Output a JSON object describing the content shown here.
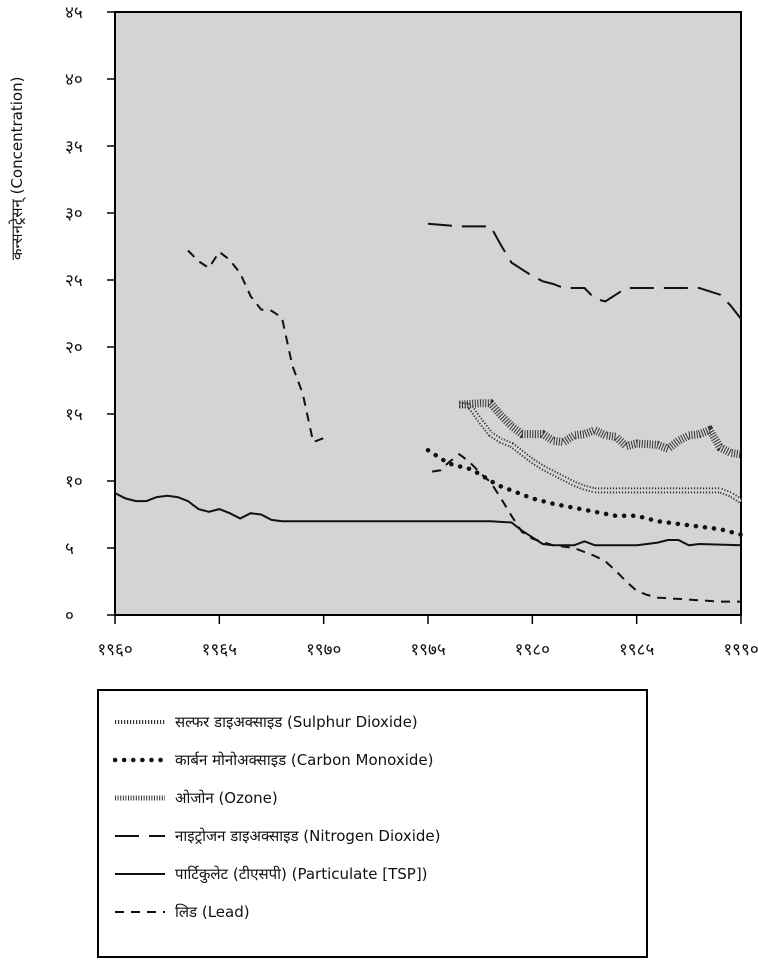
{
  "chart_data": {
    "type": "line",
    "title": "",
    "xlabel": "",
    "ylabel": "कन्सनट्रेसन् (Concentration)",
    "xlim": [
      1960,
      1990
    ],
    "ylim": [
      0,
      45
    ],
    "x_ticks": [
      "१९६०",
      "१९६५",
      "१९७०",
      "१९७५",
      "१९८०",
      "१९८५",
      "१९९०"
    ],
    "y_ticks": [
      "०",
      "५",
      "१०",
      "१५",
      "२०",
      "२५",
      "३०",
      "३५",
      "४०",
      "४५"
    ],
    "grid": false,
    "legend_position": "bottom",
    "series": [
      {
        "name": "सल्फर डाइअक्साइड (Sulphur Dioxide)",
        "style": "zigzag",
        "color": "#222222",
        "points": [
          [
            1976.5,
            15.7
          ],
          [
            1977,
            15.6
          ],
          [
            1977.5,
            14.5
          ],
          [
            1978,
            13.5
          ],
          [
            1978.5,
            13
          ],
          [
            1979,
            12.7
          ],
          [
            1979.5,
            12.1
          ],
          [
            1980,
            11.5
          ],
          [
            1980.5,
            11
          ],
          [
            1981,
            10.6
          ],
          [
            1981.5,
            10.2
          ],
          [
            1982,
            9.8
          ],
          [
            1982.5,
            9.5
          ],
          [
            1983,
            9.3
          ],
          [
            1984,
            9.3
          ],
          [
            1985,
            9.3
          ],
          [
            1986,
            9.3
          ],
          [
            1987,
            9.3
          ],
          [
            1988,
            9.3
          ],
          [
            1989,
            9.3
          ],
          [
            1989.5,
            9
          ],
          [
            1990,
            8.5
          ]
        ]
      },
      {
        "name": "कार्बन मोनोअक्साइड (Carbon Monoxide)",
        "style": "dotted",
        "color": "#111111",
        "points": [
          [
            1975,
            12.3
          ],
          [
            1975.5,
            11.8
          ],
          [
            1976,
            11.3
          ],
          [
            1976.5,
            11.1
          ],
          [
            1977,
            10.9
          ],
          [
            1977.5,
            10.5
          ],
          [
            1978,
            10
          ],
          [
            1978.5,
            9.6
          ],
          [
            1979,
            9.3
          ],
          [
            1979.5,
            9
          ],
          [
            1980,
            8.7
          ],
          [
            1981,
            8.3
          ],
          [
            1982,
            8
          ],
          [
            1983,
            7.7
          ],
          [
            1984,
            7.4
          ],
          [
            1985,
            7.4
          ],
          [
            1986,
            7
          ],
          [
            1987,
            6.8
          ],
          [
            1988,
            6.6
          ],
          [
            1989,
            6.4
          ],
          [
            1990,
            6
          ]
        ]
      },
      {
        "name": "ओजोन (Ozone)",
        "style": "hatched",
        "color": "#222222",
        "points": [
          [
            1976.5,
            15.7
          ],
          [
            1977.5,
            15.8
          ],
          [
            1978,
            15.8
          ],
          [
            1978.5,
            14.9
          ],
          [
            1979,
            14.1
          ],
          [
            1979.5,
            13.5
          ],
          [
            1980,
            13.5
          ],
          [
            1980.5,
            13.5
          ],
          [
            1981,
            13
          ],
          [
            1981.5,
            12.9
          ],
          [
            1982,
            13.4
          ],
          [
            1982.5,
            13.5
          ],
          [
            1983,
            13.8
          ],
          [
            1983.5,
            13.4
          ],
          [
            1984,
            13.3
          ],
          [
            1984.5,
            12.6
          ],
          [
            1985,
            12.8
          ],
          [
            1986,
            12.7
          ],
          [
            1986.5,
            12.4
          ],
          [
            1987,
            13
          ],
          [
            1987.5,
            13.4
          ],
          [
            1988,
            13.5
          ],
          [
            1988.5,
            13.8
          ],
          [
            1989,
            12.5
          ],
          [
            1989.5,
            12.1
          ],
          [
            1990,
            12
          ]
        ]
      },
      {
        "name": "नाइट्रोजन डाइअक्साइड (Nitrogen Dioxide)",
        "style": "longdash",
        "color": "#111111",
        "points": [
          [
            1975,
            29.2
          ],
          [
            1976.5,
            29
          ],
          [
            1978,
            29
          ],
          [
            1978.5,
            27.6
          ],
          [
            1979,
            26.3
          ],
          [
            1979.5,
            25.8
          ],
          [
            1980,
            25.3
          ],
          [
            1980.5,
            24.9
          ],
          [
            1981,
            24.7
          ],
          [
            1981.5,
            24.4
          ],
          [
            1982,
            24.4
          ],
          [
            1982.5,
            24.4
          ],
          [
            1983,
            23.6
          ],
          [
            1983.5,
            23.4
          ],
          [
            1984,
            23.9
          ],
          [
            1984.5,
            24.4
          ],
          [
            1985,
            24.4
          ],
          [
            1986,
            24.4
          ],
          [
            1987,
            24.4
          ],
          [
            1988,
            24.4
          ],
          [
            1989,
            23.9
          ],
          [
            1989.5,
            23.1
          ],
          [
            1990,
            22.1
          ]
        ]
      },
      {
        "name": "पार्टिकुलेट (टीएसपी) (Particulate [TSP])",
        "style": "solid",
        "color": "#111111",
        "points": [
          [
            1960,
            9.1
          ],
          [
            1960.5,
            8.7
          ],
          [
            1961,
            8.5
          ],
          [
            1961.5,
            8.5
          ],
          [
            1962,
            8.8
          ],
          [
            1962.5,
            8.9
          ],
          [
            1963,
            8.8
          ],
          [
            1963.5,
            8.5
          ],
          [
            1964,
            7.9
          ],
          [
            1964.5,
            7.7
          ],
          [
            1965,
            7.9
          ],
          [
            1965.5,
            7.6
          ],
          [
            1966,
            7.2
          ],
          [
            1966.5,
            7.6
          ],
          [
            1967,
            7.5
          ],
          [
            1967.5,
            7.1
          ],
          [
            1968,
            7
          ],
          [
            1970,
            7
          ],
          [
            1972,
            7
          ],
          [
            1974,
            7
          ],
          [
            1976,
            7
          ],
          [
            1977,
            7
          ],
          [
            1978,
            7
          ],
          [
            1979,
            6.9
          ],
          [
            1979.5,
            6.3
          ],
          [
            1980,
            5.8
          ],
          [
            1980.5,
            5.3
          ],
          [
            1981,
            5.2
          ],
          [
            1982,
            5.2
          ],
          [
            1982.5,
            5.5
          ],
          [
            1983,
            5.2
          ],
          [
            1984,
            5.2
          ],
          [
            1985,
            5.2
          ],
          [
            1985.5,
            5.3
          ],
          [
            1986,
            5.4
          ],
          [
            1986.5,
            5.6
          ],
          [
            1987,
            5.6
          ],
          [
            1987.5,
            5.2
          ],
          [
            1988,
            5.3
          ],
          [
            1990,
            5.2
          ]
        ]
      },
      {
        "name": "लिड (Lead)",
        "style": "shortdash",
        "color": "#111111",
        "segments": [
          [
            [
              1963.5,
              27.2
            ],
            [
              1964,
              26.4
            ],
            [
              1964.5,
              25.9
            ],
            [
              1965,
              27.1
            ],
            [
              1965.5,
              26.5
            ],
            [
              1966,
              25.5
            ],
            [
              1966.5,
              23.8
            ],
            [
              1967,
              22.8
            ],
            [
              1967.5,
              22.7
            ],
            [
              1968,
              22.2
            ],
            [
              1968.5,
              18.6
            ],
            [
              1969,
              16.5
            ],
            [
              1969.5,
              12.9
            ],
            [
              1970,
              13.2
            ]
          ],
          [
            [
              1975.2,
              10.7
            ],
            [
              1975.6,
              10.8
            ],
            [
              1976,
              11.4
            ],
            [
              1976.5,
              12
            ],
            [
              1977,
              11.4
            ],
            [
              1977.5,
              10.6
            ],
            [
              1978,
              9.9
            ],
            [
              1978.5,
              8.7
            ],
            [
              1979,
              7.4
            ],
            [
              1979.5,
              6.2
            ],
            [
              1980,
              5.7
            ],
            [
              1981,
              5.2
            ],
            [
              1982,
              5
            ],
            [
              1982.5,
              4.7
            ],
            [
              1983,
              4.4
            ],
            [
              1983.5,
              4
            ],
            [
              1984,
              3.3
            ],
            [
              1984.5,
              2.5
            ],
            [
              1985,
              1.8
            ],
            [
              1985.5,
              1.5
            ],
            [
              1986,
              1.3
            ],
            [
              1987,
              1.2
            ],
            [
              1988,
              1.1
            ],
            [
              1989,
              1
            ],
            [
              1990,
              1
            ]
          ]
        ]
      }
    ]
  }
}
